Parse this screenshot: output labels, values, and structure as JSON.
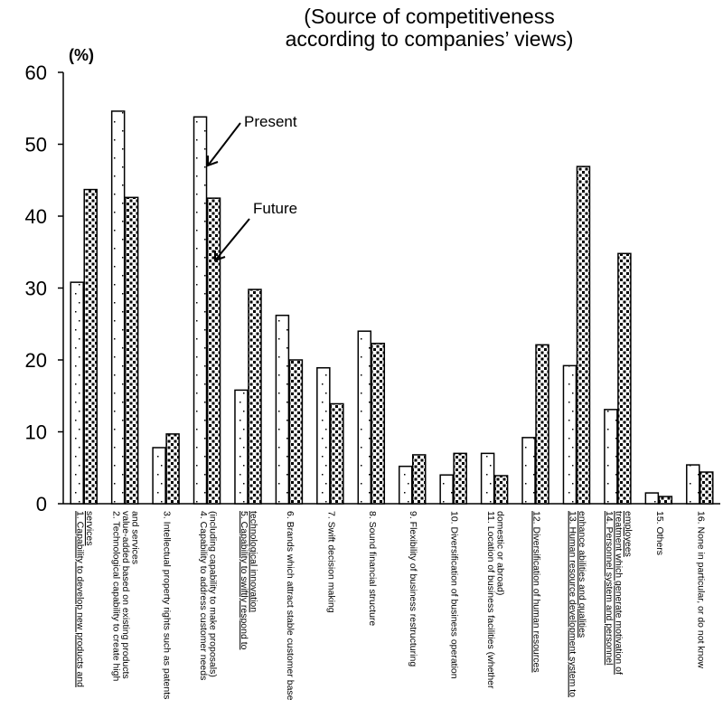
{
  "chart_data": {
    "type": "bar",
    "title_line1": "(Source of competitiveness",
    "title_line2": "according to companies’ views)",
    "unit_label": "(%)",
    "ylim": [
      0,
      60
    ],
    "yticks": [
      "0",
      "10",
      "20",
      "30",
      "40",
      "50",
      "60"
    ],
    "grid": false,
    "categories": [
      [
        "1. Capability to develop new products and",
        "services"
      ],
      [
        "2. Technological capability to create high",
        "value-added based on existing products",
        "and services"
      ],
      [
        "3. Intellectual property rights such as patents"
      ],
      [
        "4. Capability to address customer needs",
        "(including capability to make proposals)"
      ],
      [
        "5. Capability to swiftly respond to",
        "technological innovation"
      ],
      [
        "6. Brands which attract stable customer base"
      ],
      [
        "7. Swift decision making"
      ],
      [
        "8. Sound financial structure"
      ],
      [
        "9. Flexibility of business restructuring"
      ],
      [
        "10. Diversification of business operation"
      ],
      [
        "11. Location of business facilities (whether",
        "domestic or abroad)"
      ],
      [
        "12. Diversification of human resources"
      ],
      [
        "13. Human resource development system to",
        "enhance abilities and qualities"
      ],
      [
        "14. Personnel system and personnel",
        "treatment which generate motivation of",
        "employees"
      ],
      [
        "15. Others"
      ],
      [
        "16. None in particular, or do not know"
      ]
    ],
    "underlined": [
      1,
      5,
      12,
      13,
      14
    ],
    "series": [
      {
        "name": "Present",
        "values": [
          30.8,
          54.6,
          7.8,
          53.8,
          15.8,
          26.2,
          18.9,
          24.0,
          5.2,
          4.0,
          7.0,
          9.2,
          19.2,
          13.1,
          1.5,
          5.4
        ]
      },
      {
        "name": "Future",
        "values": [
          43.7,
          42.6,
          9.7,
          42.5,
          29.8,
          20.0,
          13.9,
          22.3,
          6.8,
          7.0,
          3.9,
          22.1,
          46.9,
          34.8,
          1.0,
          4.4
        ]
      }
    ]
  }
}
